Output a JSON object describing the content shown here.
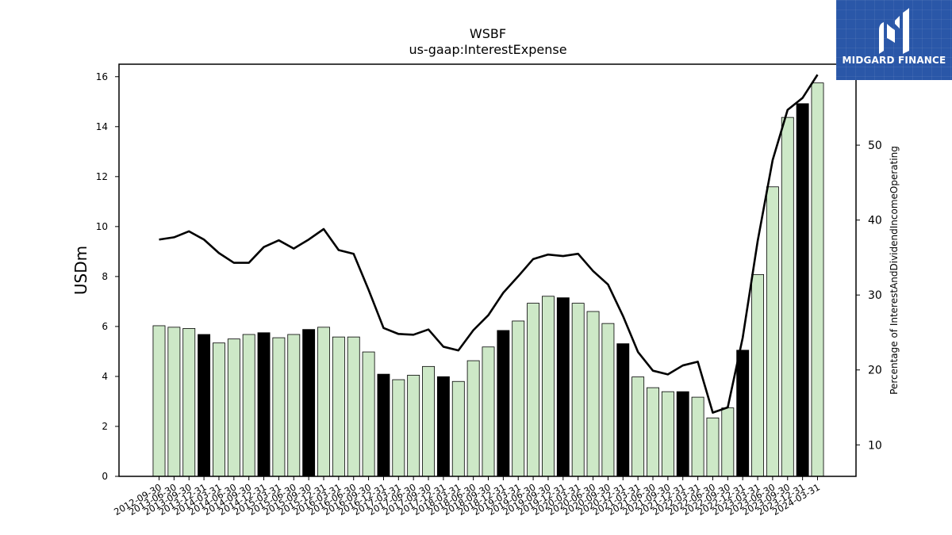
{
  "chart_data": {
    "type": "bar",
    "title": "WSBF",
    "subtitle": "us-gaap:InterestExpense",
    "ylabel": "USDm",
    "y2label": "Percentage of InterestAndDividendIncomeOperating",
    "ylim": [
      0,
      16.5
    ],
    "yticks": [
      0,
      2,
      4,
      6,
      8,
      10,
      12,
      14,
      16
    ],
    "y2lim": [
      5.8,
      60.8
    ],
    "y2ticks": [
      10,
      20,
      30,
      40,
      50
    ],
    "categories": [
      "2012-09-30",
      "2013-06-30",
      "2013-09-30",
      "2013-12-31",
      "2014-03-31",
      "2014-06-30",
      "2014-09-30",
      "2014-12-31",
      "2015-03-31",
      "2015-06-30",
      "2015-09-30",
      "2015-12-31",
      "2016-03-31",
      "2016-06-30",
      "2016-09-30",
      "2016-12-31",
      "2017-03-31",
      "2017-06-30",
      "2017-09-30",
      "2017-12-31",
      "2018-03-31",
      "2018-06-30",
      "2018-09-30",
      "2018-12-31",
      "2019-03-31",
      "2019-06-30",
      "2019-09-30",
      "2019-12-31",
      "2020-03-31",
      "2020-06-30",
      "2020-09-30",
      "2020-12-31",
      "2021-03-31",
      "2021-06-30",
      "2021-09-30",
      "2021-12-31",
      "2022-03-31",
      "2022-06-30",
      "2022-09-30",
      "2022-12-31",
      "2023-03-31",
      "2023-06-30",
      "2023-09-30",
      "2023-12-31",
      "2024-03-31"
    ],
    "series": [
      {
        "type": "bar",
        "values": [
          6.03,
          5.97,
          5.92,
          5.68,
          5.34,
          5.5,
          5.68,
          5.75,
          5.55,
          5.68,
          5.88,
          5.97,
          5.58,
          5.58,
          4.98,
          4.09,
          3.87,
          4.05,
          4.4,
          3.99,
          3.8,
          4.63,
          5.18,
          5.84,
          6.22,
          6.93,
          7.21,
          7.15,
          6.93,
          6.6,
          6.12,
          5.31,
          3.98,
          3.55,
          3.39,
          3.39,
          3.17,
          2.34,
          2.74,
          5.05,
          8.08,
          11.59,
          14.37,
          14.92,
          15.75
        ],
        "dark": [
          0,
          0,
          0,
          1,
          0,
          0,
          0,
          1,
          0,
          0,
          1,
          0,
          0,
          0,
          0,
          1,
          0,
          0,
          0,
          1,
          0,
          0,
          0,
          1,
          0,
          0,
          0,
          1,
          0,
          0,
          0,
          1,
          0,
          0,
          0,
          1,
          0,
          0,
          0,
          1,
          0,
          0,
          0,
          1,
          0
        ],
        "color_light": "#cde8c7",
        "color_dark": "#000000"
      },
      {
        "type": "line",
        "axis": "right",
        "values": [
          37.4,
          37.7,
          38.5,
          37.4,
          35.6,
          34.3,
          34.3,
          36.4,
          37.3,
          36.2,
          37.4,
          38.8,
          36.0,
          35.5,
          30.7,
          25.6,
          24.8,
          24.7,
          25.4,
          23.1,
          22.6,
          25.3,
          27.3,
          30.3,
          32.5,
          34.8,
          35.4,
          35.2,
          35.5,
          33.2,
          31.4,
          27.2,
          22.4,
          19.9,
          19.4,
          20.6,
          21.1,
          14.3,
          15.0,
          24.3,
          37.2,
          48.0,
          54.7,
          56.3,
          59.4
        ],
        "color": "#000000"
      }
    ],
    "grid": false,
    "legend": "none"
  },
  "watermark": {
    "text": "MIDGARD FINANCE",
    "bg_color": "#2a57a8"
  }
}
